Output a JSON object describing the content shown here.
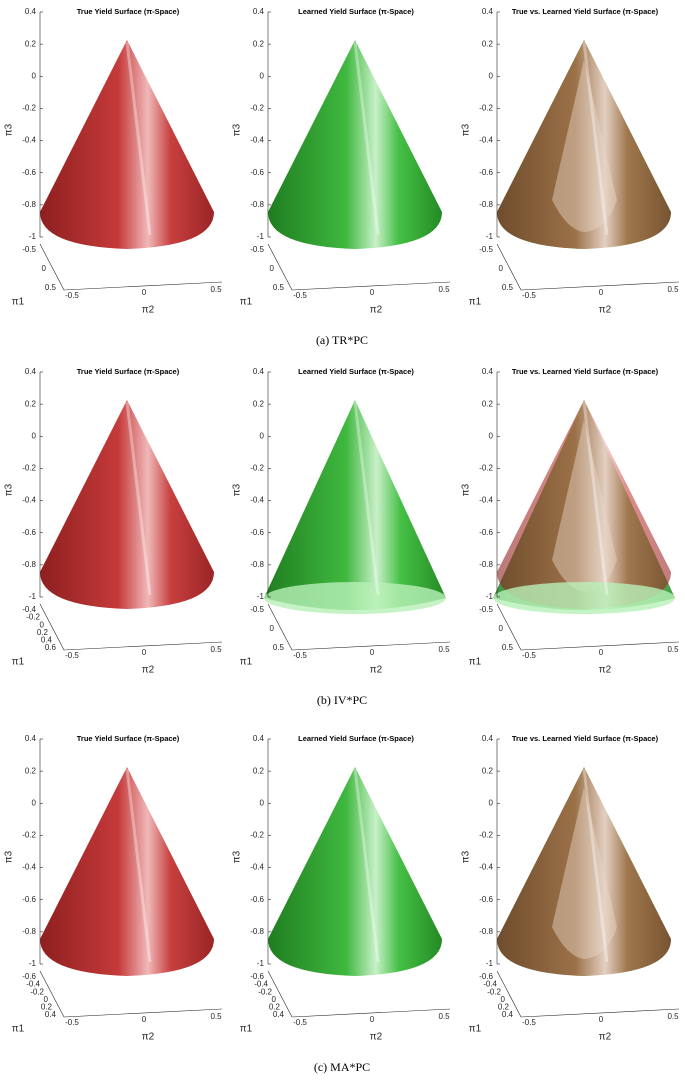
{
  "rows": [
    {
      "caption": "(a) TR*PC",
      "panels": [
        {
          "title": "True Yield Surface (π-Space)",
          "z_label": "π3",
          "x1_label": "π1",
          "x2_label": "π2",
          "zticks": [
            0.4,
            0.2,
            0,
            -0.2,
            -0.4,
            -0.6,
            -0.8,
            -1
          ],
          "x1ticks": [
            -0.5,
            0,
            0.5
          ],
          "x2ticks": [
            -0.5,
            0,
            0.5
          ]
        },
        {
          "title": "Learned Yield Surface (π-Space)",
          "z_label": "π3",
          "x1_label": "π1",
          "x2_label": "π2",
          "zticks": [
            0.4,
            0.2,
            0,
            -0.2,
            -0.4,
            -0.6,
            -0.8,
            -1
          ],
          "x1ticks": [
            -0.5,
            0,
            0.5
          ],
          "x2ticks": [
            -0.5,
            0,
            0.5
          ]
        },
        {
          "title": "True  vs.  Learned Yield Surface (π-Space)",
          "z_label": "π3",
          "x1_label": "π1",
          "x2_label": "π2",
          "zticks": [
            0.4,
            0.2,
            0,
            -0.2,
            -0.4,
            -0.6,
            -0.8,
            -1
          ],
          "x1ticks": [
            -0.5,
            0,
            0.5
          ],
          "x2ticks": [
            -0.5,
            0,
            0.5
          ]
        }
      ]
    },
    {
      "caption": "(b) IV*PC",
      "panels": [
        {
          "title": "True Yield Surface (π-Space)",
          "z_label": "π3",
          "x1_label": "π1",
          "x2_label": "π2",
          "zticks": [
            0.4,
            0.2,
            0,
            -0.2,
            -0.4,
            -0.6,
            -0.8,
            -1
          ],
          "x1ticks": [
            -0.4,
            -0.2,
            0,
            0.2,
            0.4,
            0.6
          ],
          "x2ticks": [
            -0.5,
            0,
            0.5
          ]
        },
        {
          "title": "Learned Yield Surface (π-Space)",
          "z_label": "π3",
          "x1_label": "π1",
          "x2_label": "π2",
          "zticks": [
            0.4,
            0.2,
            0,
            -0.2,
            -0.4,
            -0.6,
            -0.8,
            -1
          ],
          "x1ticks": [
            -0.5,
            0,
            0.5
          ],
          "x2ticks": [
            -0.5,
            0,
            0.5
          ]
        },
        {
          "title": "True  vs.  Learned Yield Surface (π-Space)",
          "z_label": "π3",
          "x1_label": "π1",
          "x2_label": "π2",
          "zticks": [
            0.4,
            0.2,
            0,
            -0.2,
            -0.4,
            -0.6,
            -0.8,
            -1
          ],
          "x1ticks": [
            -0.5,
            0,
            0.5
          ],
          "x2ticks": [
            -0.5,
            0,
            0.5
          ]
        }
      ]
    },
    {
      "caption": "(c) MA*PC",
      "panels": [
        {
          "title": "True Yield Surface (π-Space)",
          "z_label": "π3",
          "x1_label": "π1",
          "x2_label": "π2",
          "zticks": [
            0.4,
            0.2,
            0,
            -0.2,
            -0.4,
            -0.6,
            -0.8,
            -1
          ],
          "x1ticks": [
            -0.6,
            -0.4,
            -0.2,
            0,
            0.2,
            0.4
          ],
          "x2ticks": [
            -0.5,
            0,
            0.5
          ]
        },
        {
          "title": "Learned Yield Surface (π-Space)",
          "z_label": "π3",
          "x1_label": "π1",
          "x2_label": "π2",
          "zticks": [
            0.4,
            0.2,
            0,
            -0.2,
            -0.4,
            -0.6,
            -0.8,
            -1
          ],
          "x1ticks": [
            -0.6,
            -0.4,
            -0.2,
            0,
            0.2,
            0.4
          ],
          "x2ticks": [
            -0.5,
            0,
            0.5
          ]
        },
        {
          "title": "True  vs.  Learned Yield Surface (π-Space)",
          "z_label": "π3",
          "x1_label": "π1",
          "x2_label": "π2",
          "zticks": [
            0.4,
            0.2,
            0,
            -0.2,
            -0.4,
            -0.6,
            -0.8,
            -1
          ],
          "x1ticks": [
            -0.6,
            -0.4,
            -0.2,
            0,
            0.2,
            0.4
          ],
          "x2ticks": [
            -0.5,
            0,
            0.5
          ]
        }
      ]
    }
  ]
}
